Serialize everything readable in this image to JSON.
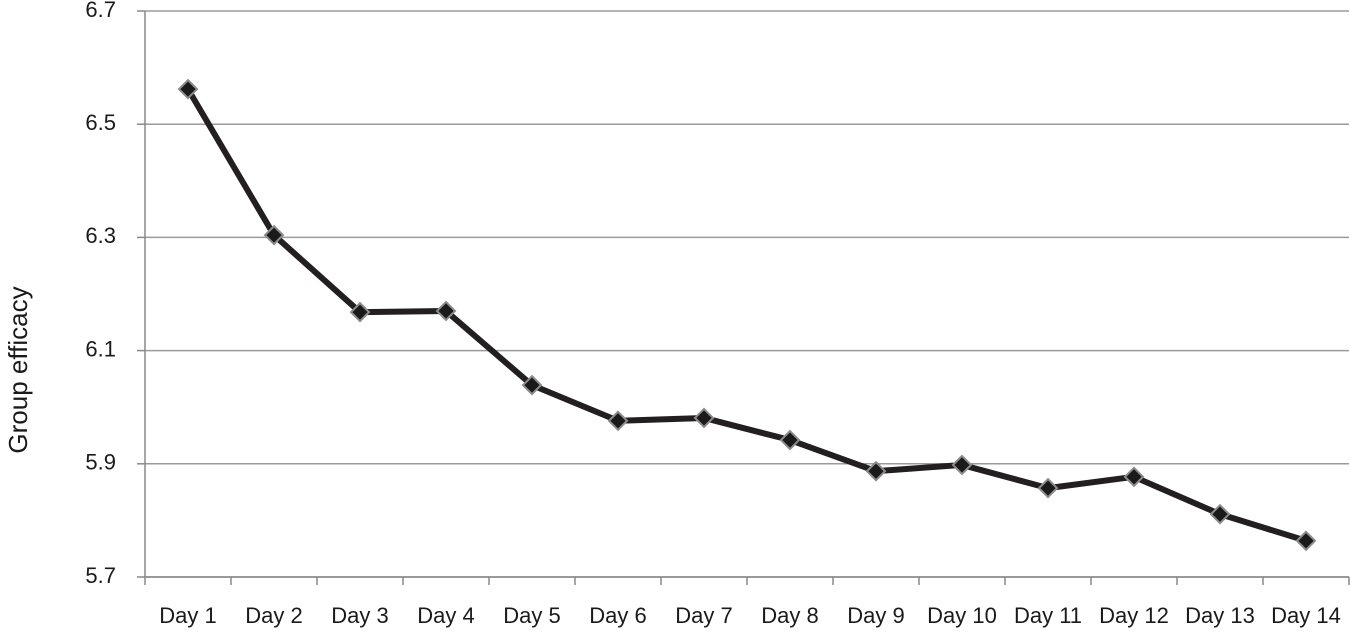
{
  "chart_data": {
    "type": "line",
    "y_label": "Group efficacy",
    "categories": [
      "Day 1",
      "Day 2",
      "Day 3",
      "Day 4",
      "Day 5",
      "Day 6",
      "Day 7",
      "Day 8",
      "Day 9",
      "Day 10",
      "Day 11",
      "Day 12",
      "Day 13",
      "Day 14"
    ],
    "values": [
      6.562,
      6.304,
      6.168,
      6.17,
      6.039,
      5.976,
      5.981,
      5.942,
      5.887,
      5.898,
      5.857,
      5.877,
      5.811,
      5.764
    ],
    "color": "#231f20",
    "marker_color": "#1a1a1a",
    "marker_edge_color": "#8c8c8c",
    "ylim": [
      5.7,
      6.7
    ],
    "yticks": [
      5.7,
      5.9,
      6.1,
      6.3,
      6.5,
      6.7
    ],
    "grid": true
  }
}
